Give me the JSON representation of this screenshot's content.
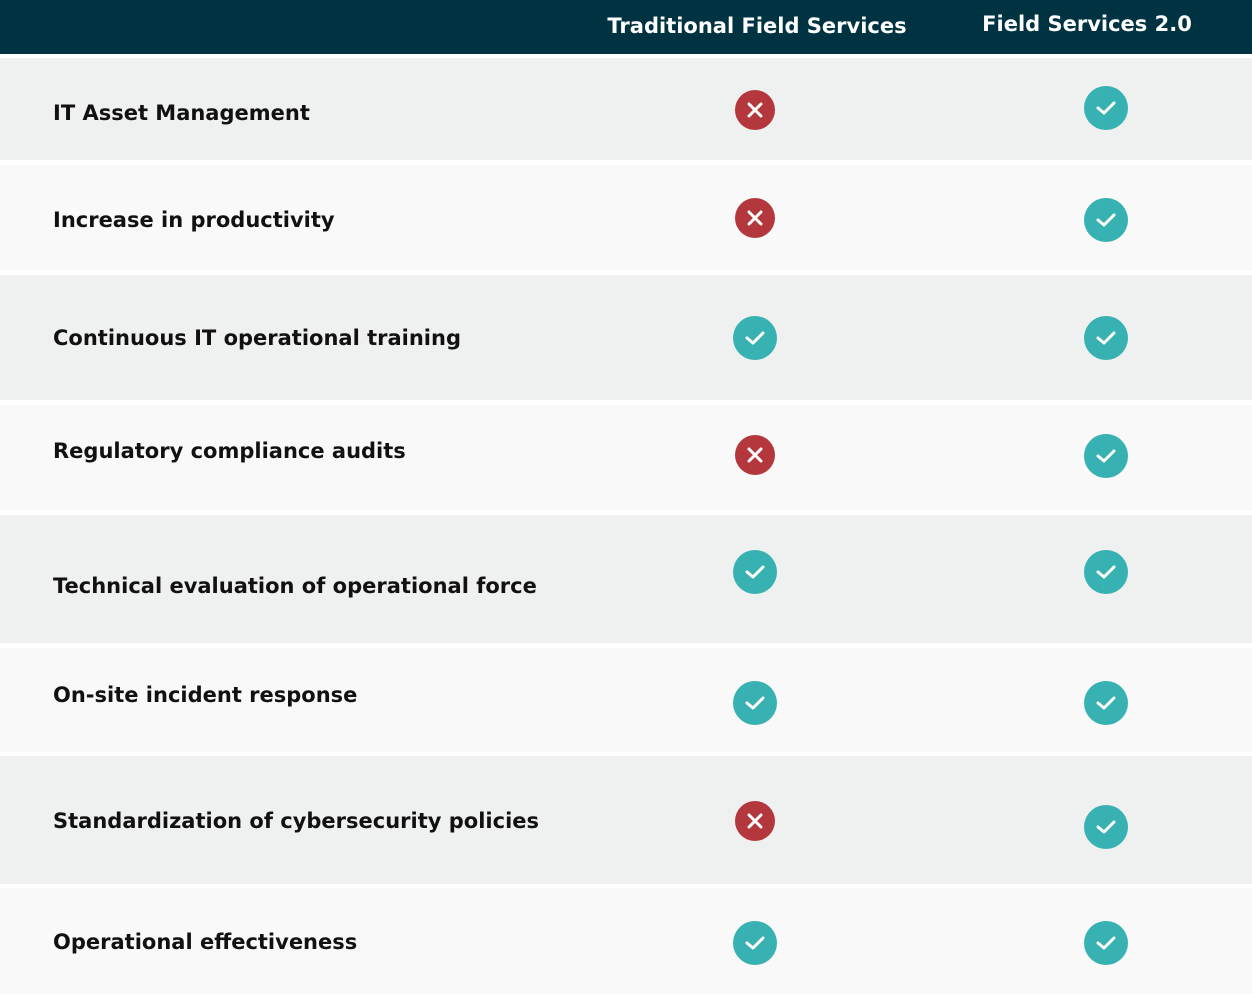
{
  "header": {
    "columns": [
      "Traditional Field Services",
      "Field Services 2.0"
    ]
  },
  "colors": {
    "header_bg": "#003342",
    "row_shaded": "#eff1f0",
    "row_plain": "#f9f9f9",
    "separator": "#ffffff",
    "yes": "#38b1b2",
    "no": "#b3373d"
  },
  "rows": [
    {
      "label": "IT Asset Management",
      "traditional": false,
      "fs2": true
    },
    {
      "label": "Increase in productivity",
      "traditional": false,
      "fs2": true
    },
    {
      "label": "Continuous IT operational training",
      "traditional": true,
      "fs2": true
    },
    {
      "label": "Regulatory compliance audits",
      "traditional": false,
      "fs2": true
    },
    {
      "label": "Technical evaluation of operational force",
      "traditional": true,
      "fs2": true
    },
    {
      "label": "On-site incident response",
      "traditional": true,
      "fs2": true
    },
    {
      "label": "Standardization of cybersecurity policies",
      "traditional": false,
      "fs2": true
    },
    {
      "label": "Operational effectiveness",
      "traditional": true,
      "fs2": true
    }
  ]
}
